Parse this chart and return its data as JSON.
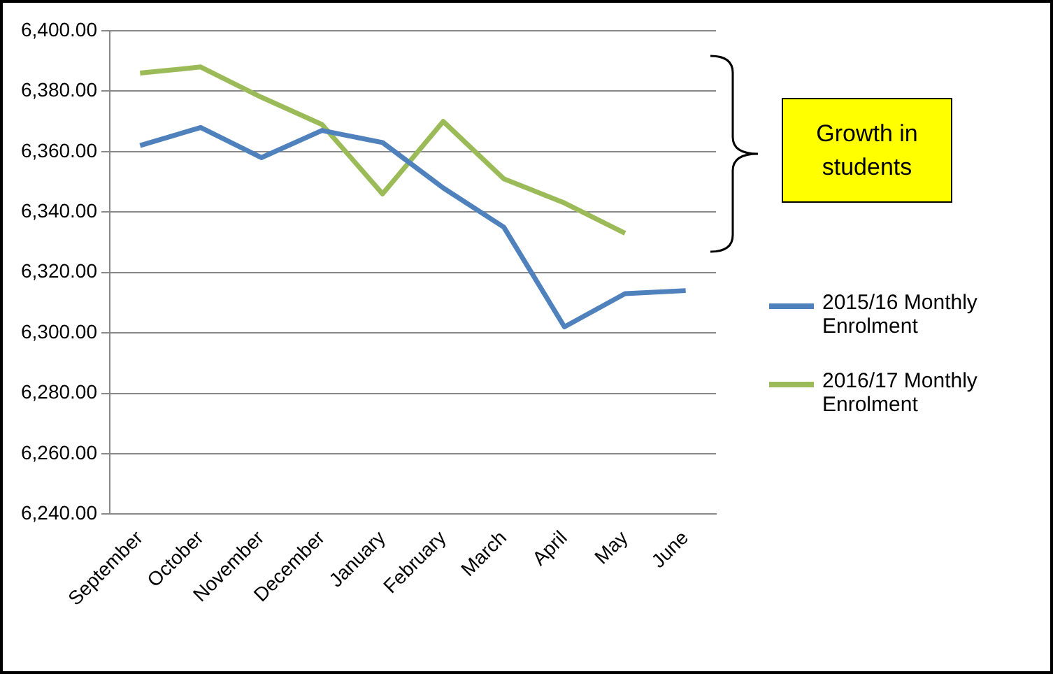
{
  "chart_data": {
    "type": "line",
    "categories": [
      "September",
      "October",
      "November",
      "December",
      "January",
      "February",
      "March",
      "April",
      "May",
      "June"
    ],
    "series": [
      {
        "name": "2015/16 Monthly Enrolment",
        "color": "#4f81bd",
        "values": [
          6362,
          6368,
          6358,
          6367,
          6363,
          6348,
          6335,
          6302,
          6313,
          6314
        ]
      },
      {
        "name": "2016/17 Monthly Enrolment",
        "color": "#9bbb59",
        "values": [
          6386,
          6388,
          6378,
          6369,
          6346,
          6370,
          6351,
          6343,
          6333,
          null
        ]
      }
    ],
    "ylim": [
      6240,
      6400
    ],
    "yticks": [
      {
        "value": 6240,
        "label": "6,240.00"
      },
      {
        "value": 6260,
        "label": "6,260.00"
      },
      {
        "value": 6280,
        "label": "6,280.00"
      },
      {
        "value": 6300,
        "label": "6,300.00"
      },
      {
        "value": 6320,
        "label": "6,320.00"
      },
      {
        "value": 6340,
        "label": "6,340.00"
      },
      {
        "value": 6360,
        "label": "6,360.00"
      },
      {
        "value": 6380,
        "label": "6,380.00"
      },
      {
        "value": 6400,
        "label": "6,400.00"
      }
    ],
    "grid": "y",
    "legend": "right",
    "marker": "none",
    "line_style": "solid",
    "annotations": [
      "Growth in students"
    ]
  }
}
